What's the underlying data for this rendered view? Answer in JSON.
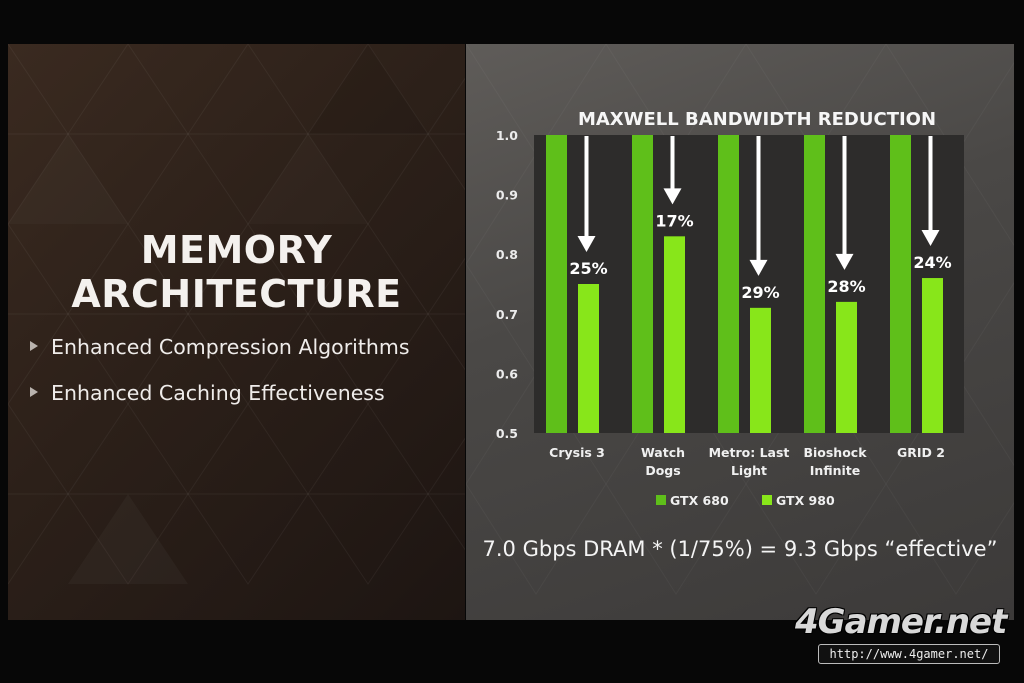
{
  "slide": {
    "title_line1": "MEMORY",
    "title_line2": "ARCHITECTURE",
    "bullets": [
      "Enhanced Compression Algorithms",
      "Enhanced Caching Effectiveness"
    ],
    "formula": "7.0 Gbps DRAM * (1/75%) = 9.3 Gbps “effective”"
  },
  "chart_data": {
    "type": "bar",
    "title": "MAXWELL BANDWIDTH REDUCTION",
    "categories": [
      "Crysis 3",
      "Watch Dogs",
      "Metro: Last Light",
      "Bioshock Infinite",
      "GRID 2"
    ],
    "category_lines": [
      [
        "Crysis 3"
      ],
      [
        "Watch",
        "Dogs"
      ],
      [
        "Metro: Last",
        "Light"
      ],
      [
        "Bioshock",
        "Infinite"
      ],
      [
        "GRID 2"
      ]
    ],
    "series": [
      {
        "name": "GTX 680",
        "values": [
          1.0,
          1.0,
          1.0,
          1.0,
          1.0
        ],
        "color": "#5fbf1a"
      },
      {
        "name": "GTX 980",
        "values": [
          0.75,
          0.83,
          0.71,
          0.72,
          0.76
        ],
        "color": "#88e61a"
      }
    ],
    "annotations": [
      "25%",
      "17%",
      "29%",
      "28%",
      "24%"
    ],
    "yticks": [
      "1.0",
      "0.9",
      "0.8",
      "0.7",
      "0.6",
      "0.5"
    ],
    "ylim": [
      0.5,
      1.0
    ],
    "legend_position": "bottom",
    "grid": false
  },
  "watermark": {
    "brand": "4Gamer.net",
    "url": "http://www.4gamer.net/"
  }
}
